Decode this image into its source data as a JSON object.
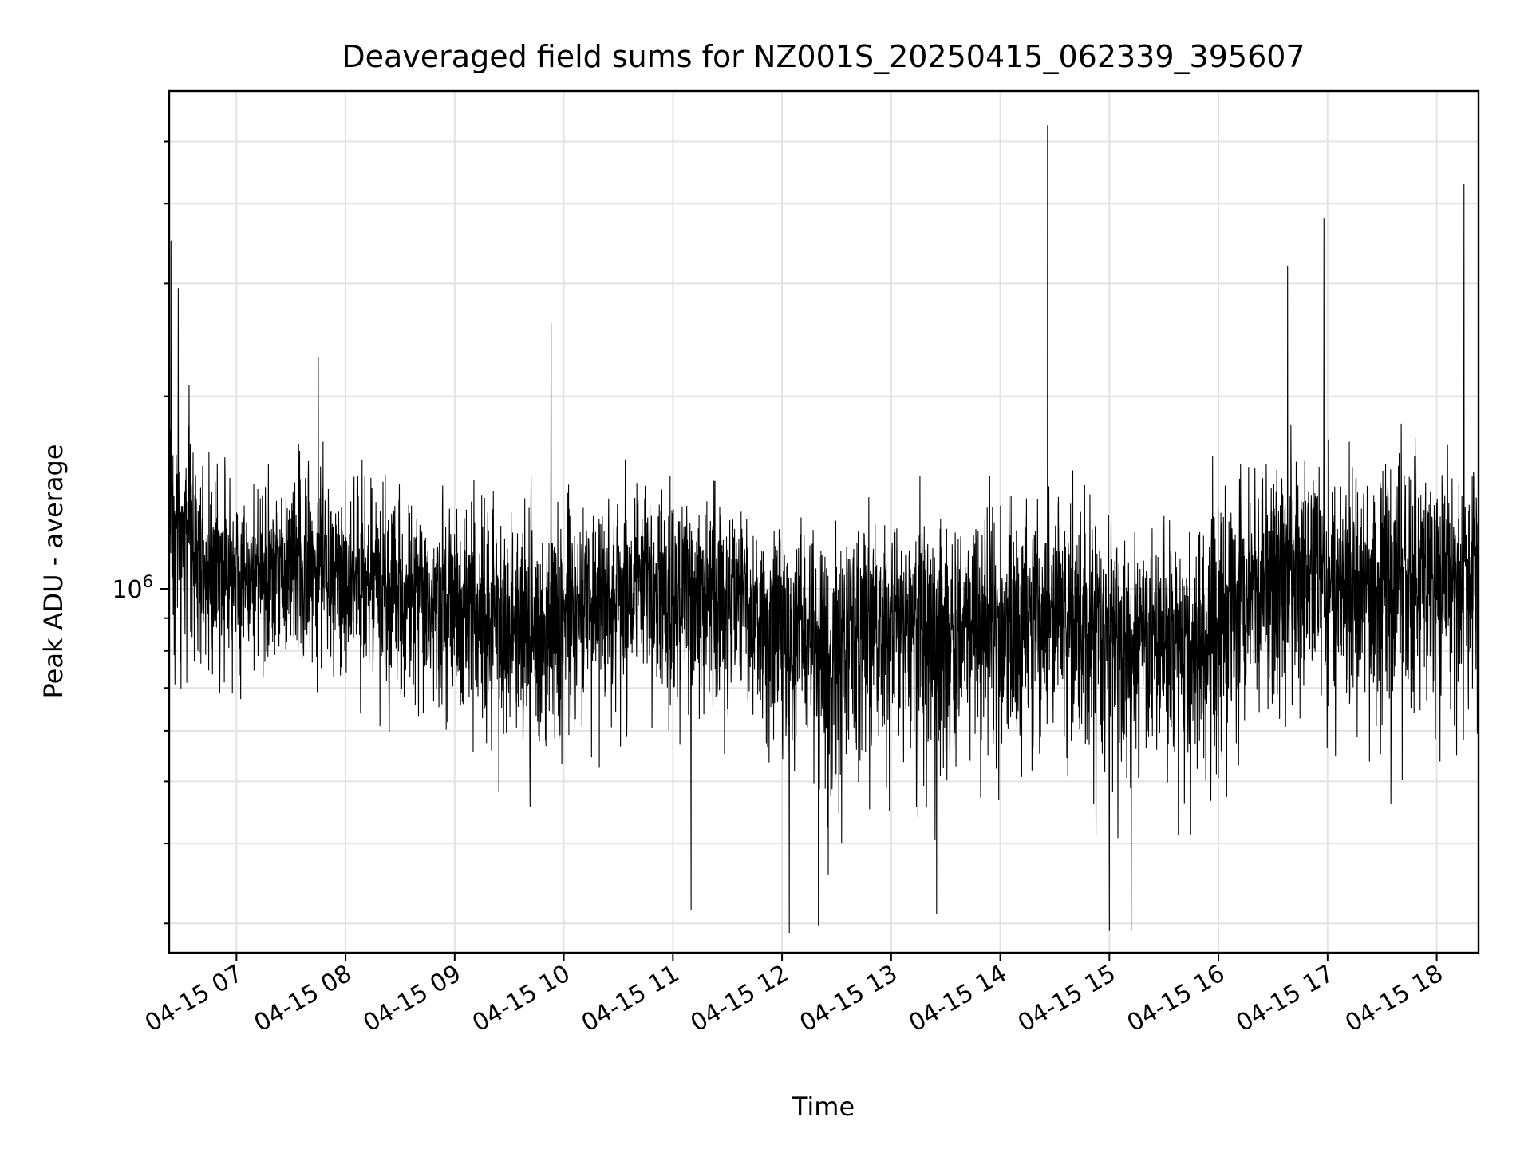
{
  "chart_data": {
    "type": "line",
    "title": "Deaveraged field sums for NZ001S_20250415_062339_395607",
    "xlabel": "Time",
    "ylabel": "Peak ADU - average",
    "yscale": "log",
    "grid": true,
    "line_color": "#000000",
    "xlim": [
      "2025-04-15 06:23",
      "2025-04-15 18:23"
    ],
    "ylim": [
      270000,
      6000000
    ],
    "x_ticks": [
      {
        "value": "2025-04-15 07:00",
        "label": "04-15 07"
      },
      {
        "value": "2025-04-15 08:00",
        "label": "04-15 08"
      },
      {
        "value": "2025-04-15 09:00",
        "label": "04-15 09"
      },
      {
        "value": "2025-04-15 10:00",
        "label": "04-15 10"
      },
      {
        "value": "2025-04-15 11:00",
        "label": "04-15 11"
      },
      {
        "value": "2025-04-15 12:00",
        "label": "04-15 12"
      },
      {
        "value": "2025-04-15 13:00",
        "label": "04-15 13"
      },
      {
        "value": "2025-04-15 14:00",
        "label": "04-15 14"
      },
      {
        "value": "2025-04-15 15:00",
        "label": "04-15 15"
      },
      {
        "value": "2025-04-15 16:00",
        "label": "04-15 16"
      },
      {
        "value": "2025-04-15 17:00",
        "label": "04-15 17"
      },
      {
        "value": "2025-04-15 18:00",
        "label": "04-15 18"
      }
    ],
    "y_major_ticks": [
      {
        "value": 1000000,
        "base": "10",
        "exponent": "6"
      }
    ],
    "y_minor_ticks": [
      300000,
      400000,
      500000,
      600000,
      700000,
      800000,
      900000,
      2000000,
      3000000,
      4000000,
      5000000
    ],
    "series": [
      {
        "x": [
          "2025-04-15 06:23",
          "2025-04-15 06:45",
          "2025-04-15 07:15",
          "2025-04-15 07:45",
          "2025-04-15 08:15",
          "2025-04-15 08:45",
          "2025-04-15 09:15",
          "2025-04-15 09:45",
          "2025-04-15 10:15",
          "2025-04-15 10:45",
          "2025-04-15 11:15",
          "2025-04-15 11:45",
          "2025-04-15 12:15",
          "2025-04-15 12:45",
          "2025-04-15 13:15",
          "2025-04-15 13:45",
          "2025-04-15 14:15",
          "2025-04-15 14:45",
          "2025-04-15 15:15",
          "2025-04-15 15:45",
          "2025-04-15 16:15",
          "2025-04-15 16:45",
          "2025-04-15 17:15",
          "2025-04-15 17:45",
          "2025-04-15 18:23"
        ],
        "values": [
          1300000,
          1090000,
          1060000,
          1130000,
          1030000,
          940000,
          930000,
          870000,
          960000,
          1020000,
          980000,
          960000,
          830000,
          880000,
          900000,
          860000,
          920000,
          880000,
          840000,
          800000,
          960000,
          1110000,
          990000,
          1000000,
          1040000
        ],
        "envelope_low": [
          700000,
          670000,
          660000,
          720000,
          640000,
          540000,
          530000,
          500000,
          560000,
          600000,
          580000,
          560000,
          420000,
          450000,
          460000,
          440000,
          500000,
          470000,
          430000,
          420000,
          530000,
          600000,
          560000,
          560000,
          600000
        ],
        "envelope_high": [
          2100000,
          1600000,
          1500000,
          1700000,
          1550000,
          1400000,
          1450000,
          1380000,
          1500000,
          1550000,
          1450000,
          1400000,
          1300000,
          1350000,
          1450000,
          1400000,
          1550000,
          1500000,
          1400000,
          1350000,
          1650000,
          1900000,
          1700000,
          1700000,
          1800000
        ]
      }
    ],
    "spikes": [
      {
        "x": "2025-04-15 06:24",
        "value": 3500000
      },
      {
        "x": "2025-04-15 06:28",
        "value": 2950000
      },
      {
        "x": "2025-04-15 07:45",
        "value": 2300000
      },
      {
        "x": "2025-04-15 09:53",
        "value": 2600000
      },
      {
        "x": "2025-04-15 14:26",
        "value": 5300000
      },
      {
        "x": "2025-04-15 16:38",
        "value": 3200000
      },
      {
        "x": "2025-04-15 16:58",
        "value": 3800000
      },
      {
        "x": "2025-04-15 18:15",
        "value": 4300000
      },
      {
        "x": "2025-04-15 12:04",
        "value": 290000
      },
      {
        "x": "2025-04-15 11:10",
        "value": 315000
      },
      {
        "x": "2025-04-15 15:00",
        "value": 292000
      },
      {
        "x": "2025-04-15 15:12",
        "value": 292000
      },
      {
        "x": "2025-04-15 12:20",
        "value": 298000
      },
      {
        "x": "2025-04-15 13:25",
        "value": 310000
      }
    ]
  }
}
